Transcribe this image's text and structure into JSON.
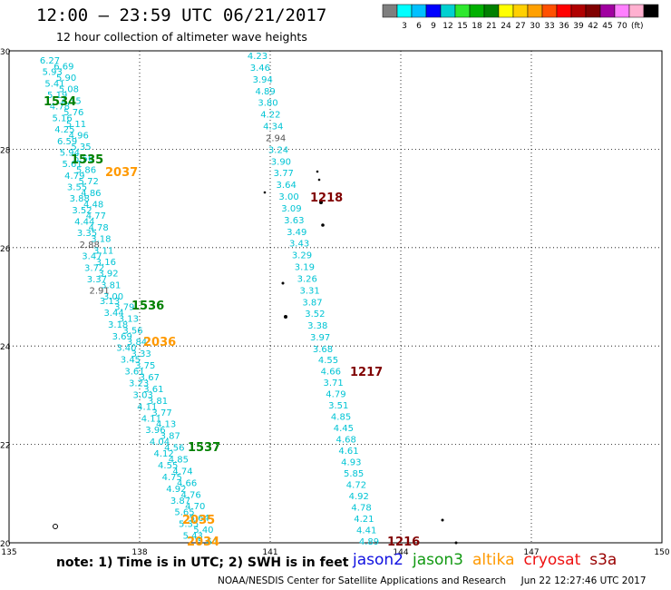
{
  "header": {
    "title": "12:00 – 23:59 UTC 06/21/2017",
    "subtitle": "12 hour collection of altimeter wave heights"
  },
  "color_scale": {
    "colors": [
      "#7f7f7f",
      "#00ffff",
      "#00c0ff",
      "#0000ff",
      "#00d0d0",
      "#2ee82e",
      "#00b000",
      "#008000",
      "#ffff00",
      "#ffd000",
      "#ffa000",
      "#ff5000",
      "#ff0000",
      "#b00000",
      "#800000",
      "#a000a0",
      "#ff80ff",
      "#ffb0d0",
      "#000000"
    ],
    "labels": [
      "3",
      "6",
      "9",
      "12",
      "15",
      "18",
      "21",
      "24",
      "27",
      "30",
      "33",
      "36",
      "39",
      "42",
      "45",
      "70"
    ],
    "unit": "(ft)"
  },
  "axes": {
    "lat_labels": [
      "30",
      "28",
      "26",
      "24",
      "22",
      "20"
    ],
    "lat_values": [
      30,
      28,
      26,
      24,
      22,
      20
    ],
    "lon_labels": [
      "135",
      "138",
      "141",
      "144",
      "147",
      "150"
    ],
    "lon_values": [
      135,
      138,
      141,
      144,
      147,
      150
    ]
  },
  "tracks": [
    {
      "id": "1534",
      "label": "1534",
      "color": "#008000",
      "values": [
        "6.27",
        "6.69",
        "5.93",
        "5.90",
        "5.41",
        "5.08",
        "5.19",
        "4.55",
        "4.78",
        "5.76",
        "5.16",
        "5.11",
        "4.25",
        "4.96",
        "6.59",
        "5.35",
        "5.94",
        "5.56",
        "5.61",
        "5.86",
        "4.79",
        "5.72",
        "3.55",
        "4.86",
        "3.88",
        "4.48",
        "3.52",
        "4.77",
        "4.44",
        "4.78",
        "3.35",
        "3.18",
        "2.88",
        "3.11",
        "3.47",
        "3.16",
        "3.72",
        "3.92",
        "3.37",
        "3.81",
        "2.91",
        "3.00"
      ]
    },
    {
      "id": "1535",
      "label": "1535",
      "color": "#008000"
    },
    {
      "id": "1536",
      "label": "1536",
      "color": "#008000"
    },
    {
      "id": "1537",
      "label": "1537",
      "color": "#008000",
      "values": [
        "3.13",
        "3.79",
        "3.44",
        "3.13",
        "3.18",
        "3.56",
        "3.69",
        "3.84",
        "3.40",
        "3.33",
        "3.45",
        "3.75",
        "3.61",
        "3.67",
        "3.23",
        "3.61",
        "3.03",
        "3.81",
        "4.11",
        "3.77",
        "4.11",
        "4.13",
        "3.96",
        "3.87",
        "4.04",
        "4.56",
        "4.12",
        "4.85",
        "4.55",
        "4.74",
        "4.75",
        "4.66",
        "4.92",
        "4.76",
        "3.87",
        "4.70",
        "5.65",
        "5.64",
        "5.35",
        "5.40",
        "5.43",
        "5.64"
      ]
    },
    {
      "id": "2037",
      "label": "2037",
      "color": "#ff9900"
    },
    {
      "id": "2036",
      "label": "2036",
      "color": "#ff9900"
    },
    {
      "id": "2035",
      "label": "2035",
      "color": "#ff9900"
    },
    {
      "id": "2034",
      "label": "2034",
      "color": "#ff9900"
    },
    {
      "id": "1218",
      "label": "1218",
      "color": "#800000",
      "values": [
        "4.23",
        "3.46",
        "3.94",
        "4.89",
        "3.80",
        "4.22",
        "4.34",
        "2.94",
        "3.24",
        "3.90",
        "3.77",
        "3.64",
        "3.00",
        "3.09",
        "3.63",
        "3.49",
        "3.43",
        "3.29",
        "3.19",
        "3.26",
        "3.31",
        "3.87",
        "3.52",
        "3.38",
        "3.97",
        "3.68"
      ]
    },
    {
      "id": "1217",
      "label": "1217",
      "color": "#800000",
      "values": [
        "4.55",
        "4.66",
        "3.71",
        "4.79",
        "3.51",
        "4.85",
        "4.45",
        "4.68",
        "4.61",
        "4.93",
        "5.85",
        "4.72",
        "4.92",
        "4.78",
        "4.21",
        "4.41",
        "4.89"
      ]
    },
    {
      "id": "1216",
      "label": "1216",
      "color": "#800000"
    }
  ],
  "note": "note:  1) Time is in UTC;  2) SWH is in feet",
  "satellites": [
    {
      "name": "jason2",
      "color": "#1010e0"
    },
    {
      "name": "jason3",
      "color": "#119911"
    },
    {
      "name": "altika",
      "color": "#ff9900"
    },
    {
      "name": "cryosat",
      "color": "#ee1111"
    },
    {
      "name": "s3a",
      "color": "#990000"
    }
  ],
  "credit": "NOAA/NESDIS Center for Satellite Applications and Research     Jun 22 12:27:46 UTC 2017"
}
